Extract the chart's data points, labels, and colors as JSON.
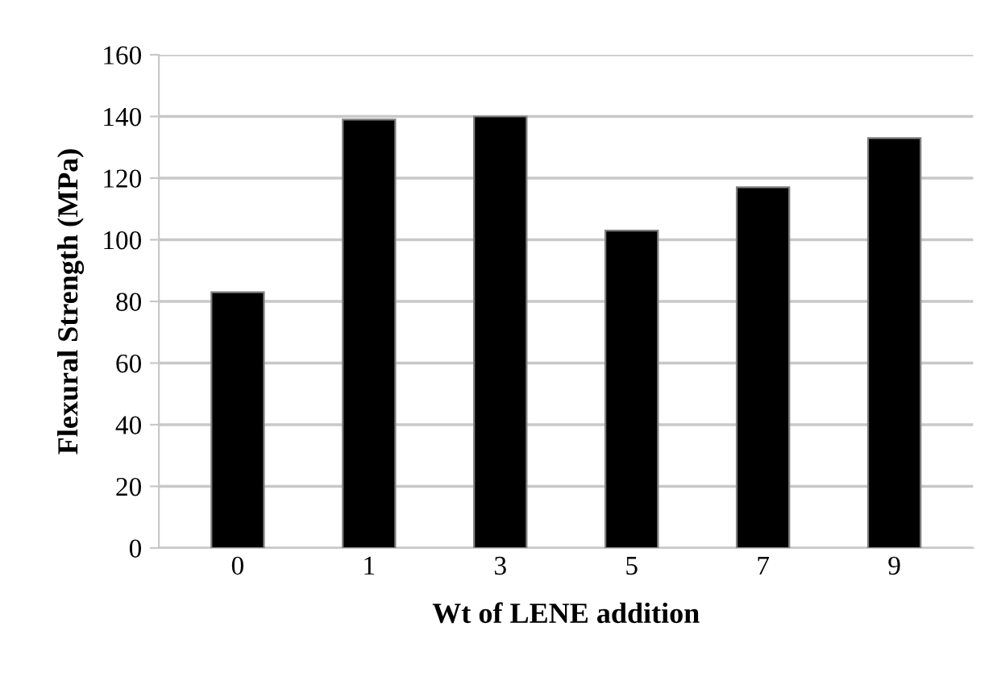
{
  "chart_data": {
    "type": "bar",
    "xlabel": "Wt of LENE addition",
    "ylabel": "Flexural Strength (MPa)",
    "categories": [
      "0",
      "1",
      "3",
      "5",
      "7",
      "9"
    ],
    "values": [
      83,
      139,
      140,
      103,
      117,
      133
    ],
    "color": "#000000",
    "ylim": [
      0,
      160
    ],
    "yticks": [
      0,
      20,
      40,
      60,
      80,
      100,
      120,
      140,
      160
    ],
    "grid": "y",
    "legend": false
  }
}
